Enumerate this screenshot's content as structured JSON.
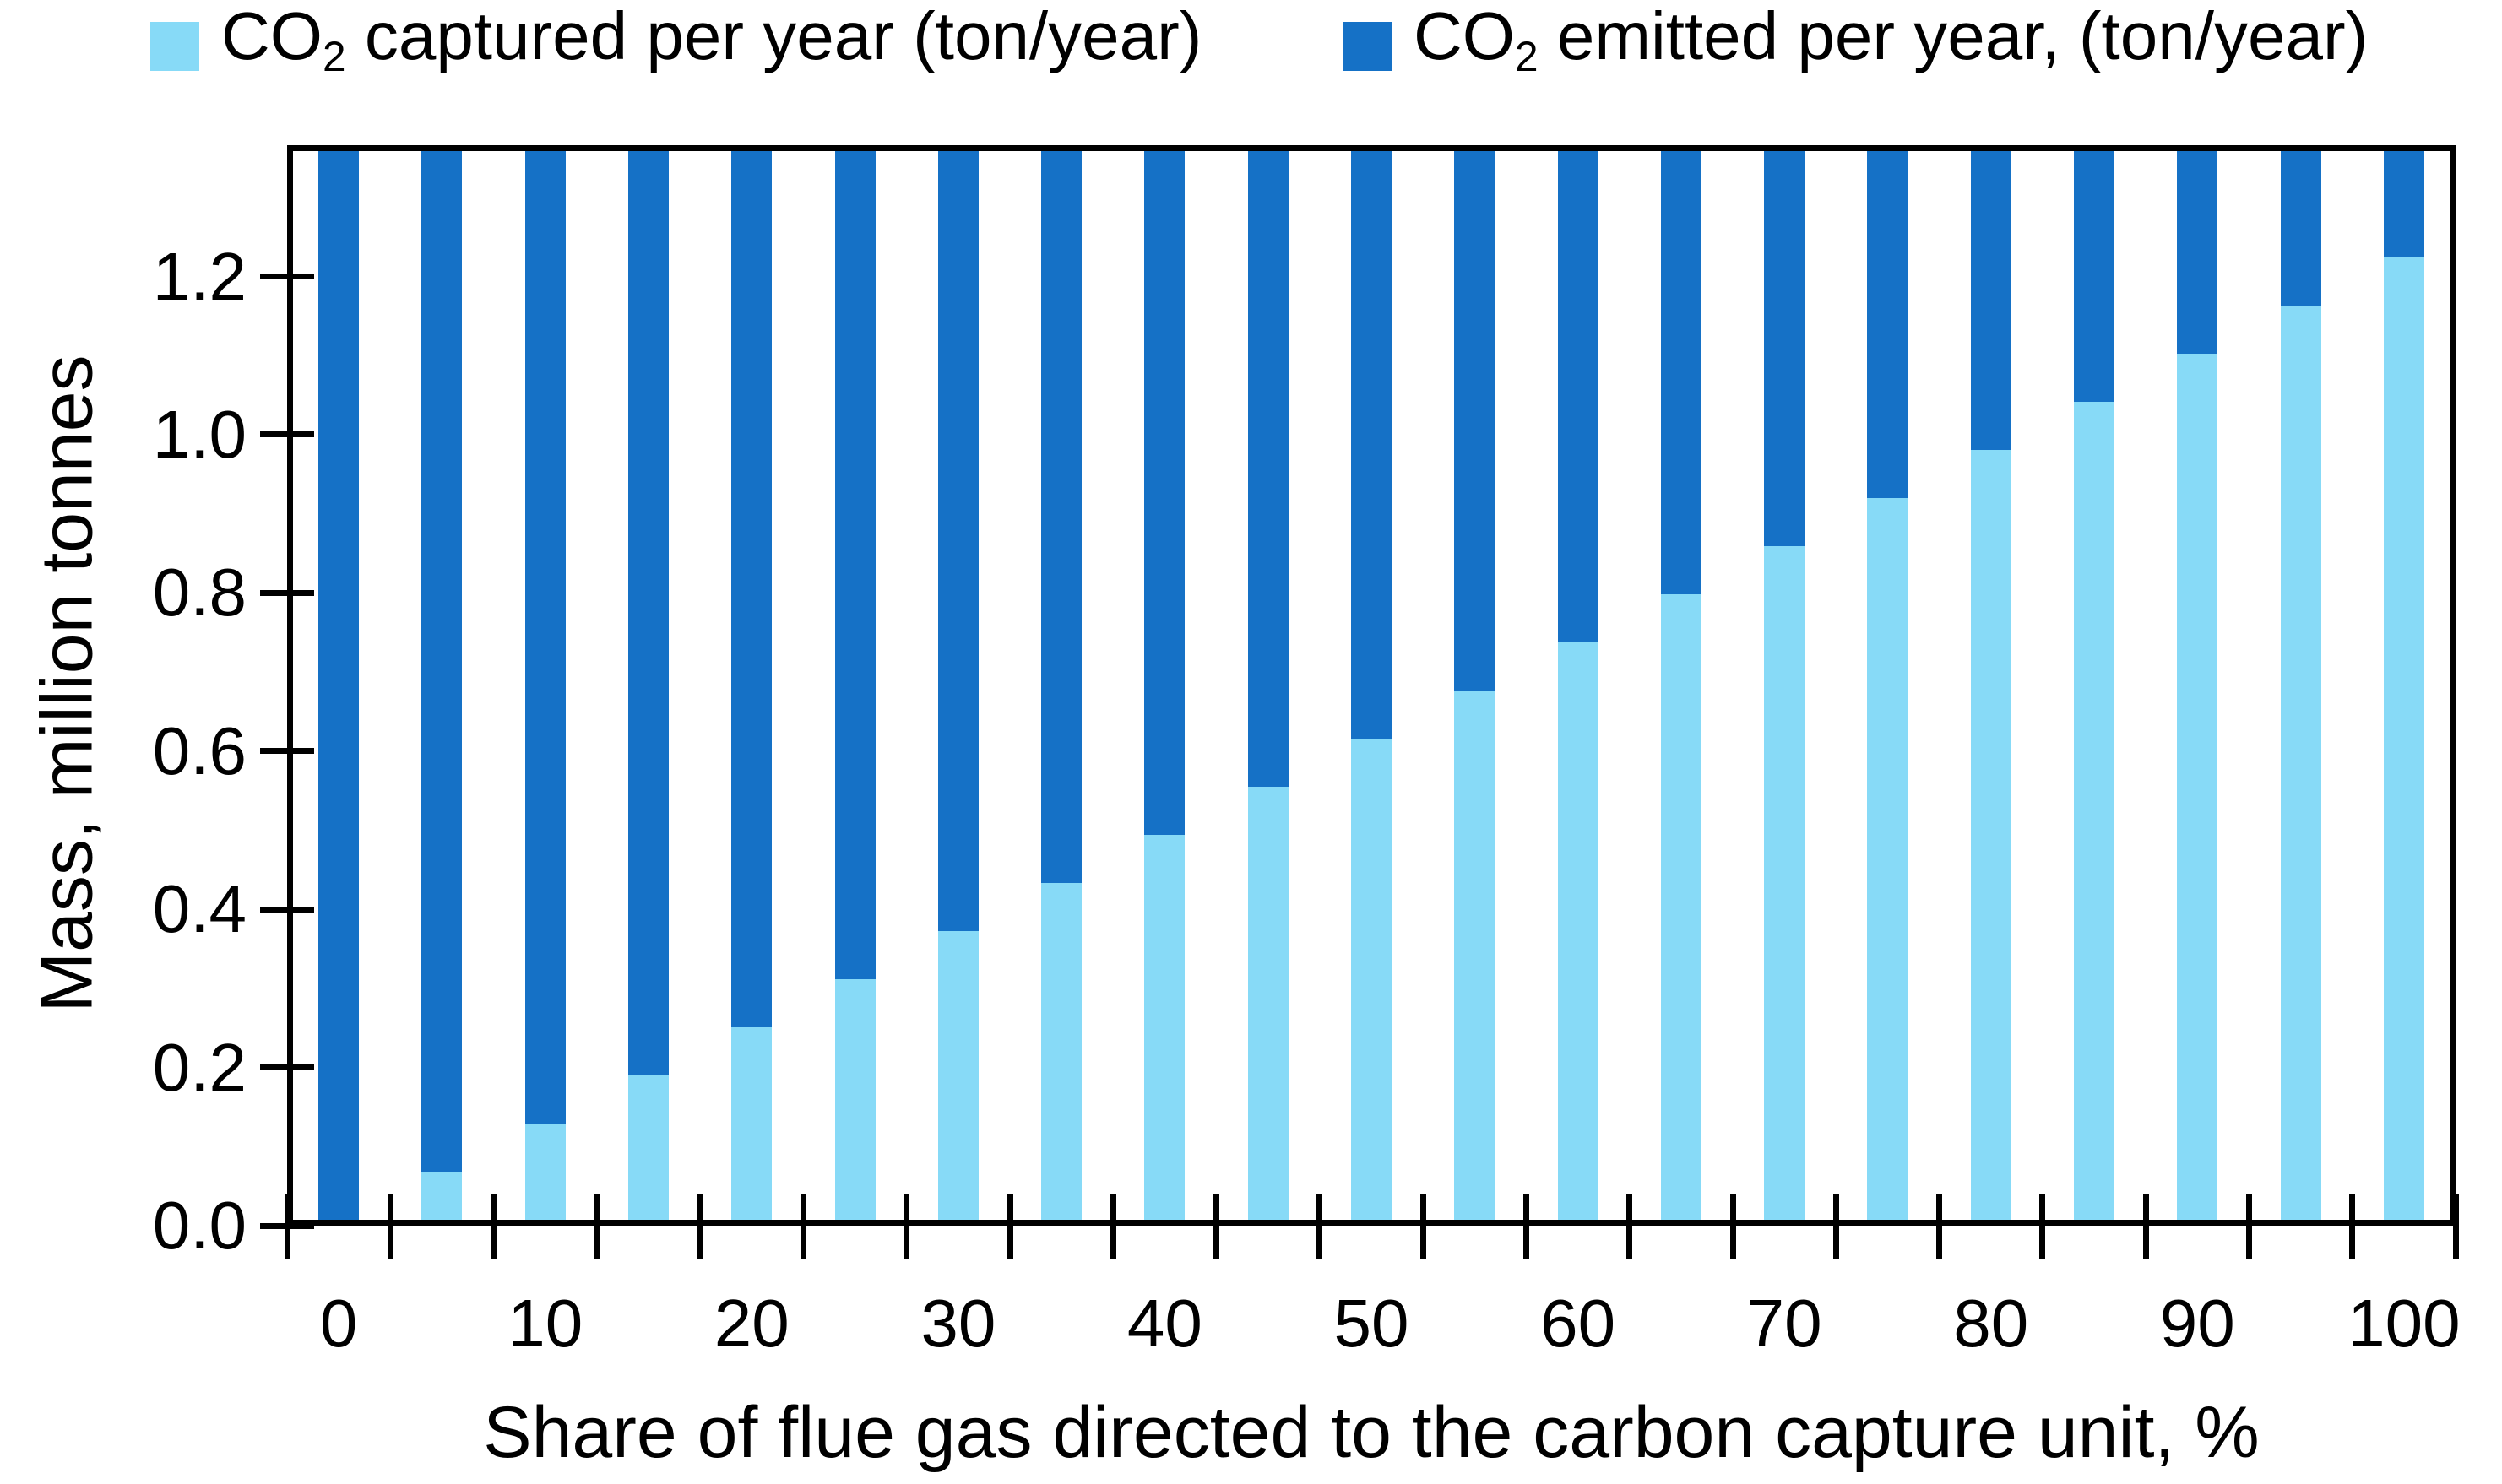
{
  "legend": {
    "items": [
      {
        "key": "captured",
        "prefix": "CO",
        "subscript": "2",
        "rest": " captured per year (ton/year)",
        "color": "#87DAF7"
      },
      {
        "key": "emitted",
        "prefix": "CO",
        "subscript": "2",
        "rest": " emitted per year, (ton/year)",
        "color": "#1571C6"
      }
    ]
  },
  "y_axis": {
    "title": "Mass, million tonnes",
    "tick_labels": [
      "0.0",
      "0.2",
      "0.4",
      "0.6",
      "0.8",
      "1.0",
      "1.2"
    ],
    "tick_values": [
      0.0,
      0.2,
      0.4,
      0.6,
      0.8,
      1.0,
      1.2
    ]
  },
  "x_axis": {
    "title": "Share of flue gas directed to the carbon capture unit, %",
    "tick_labels": [
      "0",
      "10",
      "20",
      "30",
      "40",
      "50",
      "60",
      "70",
      "80",
      "90",
      "100"
    ]
  },
  "chart_data": {
    "type": "bar",
    "stacked": true,
    "title": "",
    "xlabel": "Share of flue gas directed to the carbon capture unit, %",
    "ylabel": "Mass, million tonnes",
    "categories": [
      0,
      5,
      10,
      15,
      20,
      25,
      30,
      35,
      40,
      45,
      50,
      55,
      60,
      65,
      70,
      75,
      80,
      85,
      90,
      95,
      100
    ],
    "series": [
      {
        "name": "CO2 captured per year (ton/year)",
        "color": "#87DAF7",
        "values": [
          0,
          0.0615,
          0.123,
          0.1845,
          0.246,
          0.3075,
          0.369,
          0.4305,
          0.492,
          0.5535,
          0.615,
          0.6765,
          0.738,
          0.7995,
          0.861,
          0.9225,
          0.984,
          1.0455,
          1.107,
          1.1685,
          1.23
        ]
      },
      {
        "name": "CO2 emitted per year, (ton/year)",
        "color": "#1571C6",
        "values_visible": [
          1.366,
          1.305,
          1.243,
          1.182,
          1.12,
          1.059,
          0.997,
          0.936,
          0.874,
          0.813,
          0.751,
          0.69,
          0.628,
          0.567,
          0.505,
          0.444,
          0.382,
          0.321,
          0.259,
          0.198,
          0.136
        ],
        "note": "Emitted segments extend to the top of the plot for every bar; stacked totals are clipped at the visible axis maximum."
      }
    ],
    "ylim": [
      0,
      1.366
    ],
    "xlim_percent": [
      0,
      100
    ],
    "grid": false,
    "legend_position": "top",
    "bars_clipped_at_top": true
  }
}
